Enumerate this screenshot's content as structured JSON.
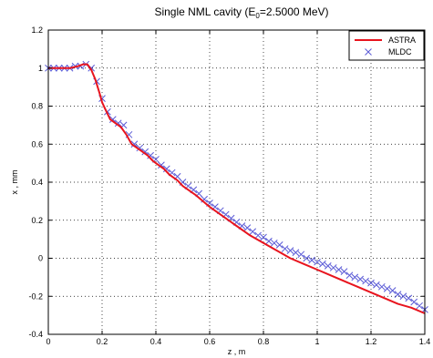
{
  "chart_data": {
    "type": "line",
    "title": {
      "prefix": "Single NML cavity  (E",
      "subscript": "0",
      "suffix": "=2.5000 MeV)"
    },
    "xlabel": "z , m",
    "ylabel": "x , mm",
    "xlim": [
      0,
      1.4
    ],
    "ylim": [
      -0.4,
      1.2
    ],
    "xticks": [
      0,
      0.2,
      0.4,
      0.6,
      0.8,
      1,
      1.2,
      1.4
    ],
    "xtick_labels": [
      "0",
      "0.2",
      "0.4",
      "0.6",
      "0.8",
      "1",
      "1.2",
      "1.4"
    ],
    "yticks": [
      -0.4,
      -0.2,
      0,
      0.2,
      0.4,
      0.6,
      0.8,
      1,
      1.2
    ],
    "ytick_labels": [
      "-0.4",
      "-0.2",
      "0",
      "0.2",
      "0.4",
      "0.6",
      "0.8",
      "1",
      "1.2"
    ],
    "grid": true,
    "legend_position": "top-right",
    "series": [
      {
        "name": "ASTRA",
        "style": "line",
        "color": "#e8141e",
        "x": [
          0,
          0.02,
          0.05,
          0.08,
          0.11,
          0.13,
          0.145,
          0.16,
          0.175,
          0.19,
          0.2,
          0.21,
          0.23,
          0.25,
          0.27,
          0.29,
          0.31,
          0.33,
          0.35,
          0.37,
          0.39,
          0.41,
          0.43,
          0.45,
          0.48,
          0.5,
          0.55,
          0.6,
          0.65,
          0.7,
          0.75,
          0.8,
          0.85,
          0.9,
          0.95,
          1.0,
          1.05,
          1.1,
          1.15,
          1.2,
          1.25,
          1.3,
          1.35,
          1.4
        ],
        "y": [
          1.0,
          1.0,
          1.0,
          1.0,
          1.01,
          1.02,
          1.02,
          0.99,
          0.94,
          0.87,
          0.82,
          0.79,
          0.73,
          0.71,
          0.69,
          0.65,
          0.6,
          0.58,
          0.56,
          0.54,
          0.51,
          0.49,
          0.47,
          0.44,
          0.41,
          0.38,
          0.33,
          0.27,
          0.22,
          0.17,
          0.12,
          0.08,
          0.04,
          0.0,
          -0.03,
          -0.06,
          -0.09,
          -0.12,
          -0.15,
          -0.18,
          -0.21,
          -0.24,
          -0.26,
          -0.29
        ]
      },
      {
        "name": "MLDC",
        "style": "marker-x",
        "color": "#5a5ad6",
        "x": [
          0,
          0.02,
          0.04,
          0.06,
          0.08,
          0.1,
          0.12,
          0.14,
          0.16,
          0.18,
          0.2,
          0.22,
          0.24,
          0.26,
          0.28,
          0.3,
          0.32,
          0.34,
          0.36,
          0.38,
          0.4,
          0.42,
          0.44,
          0.46,
          0.48,
          0.5,
          0.52,
          0.54,
          0.56,
          0.58,
          0.6,
          0.62,
          0.64,
          0.66,
          0.68,
          0.7,
          0.72,
          0.74,
          0.76,
          0.78,
          0.8,
          0.82,
          0.84,
          0.86,
          0.88,
          0.9,
          0.92,
          0.94,
          0.96,
          0.98,
          1.0,
          1.02,
          1.04,
          1.06,
          1.08,
          1.1,
          1.12,
          1.14,
          1.16,
          1.18,
          1.2,
          1.22,
          1.24,
          1.26,
          1.28,
          1.3,
          1.32,
          1.34,
          1.36,
          1.38,
          1.4
        ],
        "y": [
          1.0,
          1.0,
          1.0,
          1.0,
          1.0,
          1.01,
          1.01,
          1.02,
          1.0,
          0.93,
          0.84,
          0.77,
          0.73,
          0.71,
          0.7,
          0.65,
          0.6,
          0.58,
          0.56,
          0.54,
          0.52,
          0.49,
          0.47,
          0.45,
          0.43,
          0.4,
          0.38,
          0.36,
          0.34,
          0.31,
          0.29,
          0.27,
          0.25,
          0.23,
          0.21,
          0.19,
          0.17,
          0.16,
          0.14,
          0.12,
          0.11,
          0.09,
          0.08,
          0.07,
          0.05,
          0.04,
          0.03,
          0.02,
          0.0,
          -0.01,
          -0.02,
          -0.03,
          -0.04,
          -0.05,
          -0.06,
          -0.07,
          -0.09,
          -0.1,
          -0.11,
          -0.12,
          -0.13,
          -0.14,
          -0.15,
          -0.16,
          -0.17,
          -0.19,
          -0.2,
          -0.21,
          -0.23,
          -0.25,
          -0.27
        ]
      }
    ]
  }
}
